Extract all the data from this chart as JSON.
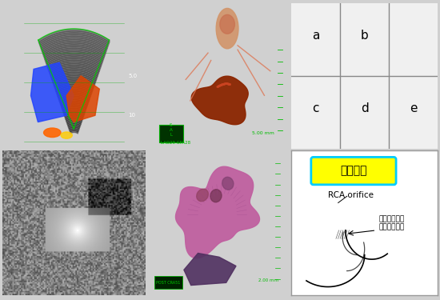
{
  "figure_bg": "#d0d0d0",
  "grid_labels": [
    "a",
    "b",
    "c",
    "d",
    "e"
  ],
  "grid_bg": "#f0f0f0",
  "diagram_bg": "#ffffff",
  "diagram_border": "#999999",
  "label_yellow_bg": "#ffff00",
  "label_cyan_border": "#00ccff",
  "label_text": "手術所見",
  "rca_text": "RCA orifice",
  "valsalva_text": "バルサルバ洞\n動脈瘀開口部",
  "echo_bg": "#000000",
  "ct_bg": "#888888",
  "render3d_bg": "#111111",
  "render_heart_bg": "#cccccc"
}
